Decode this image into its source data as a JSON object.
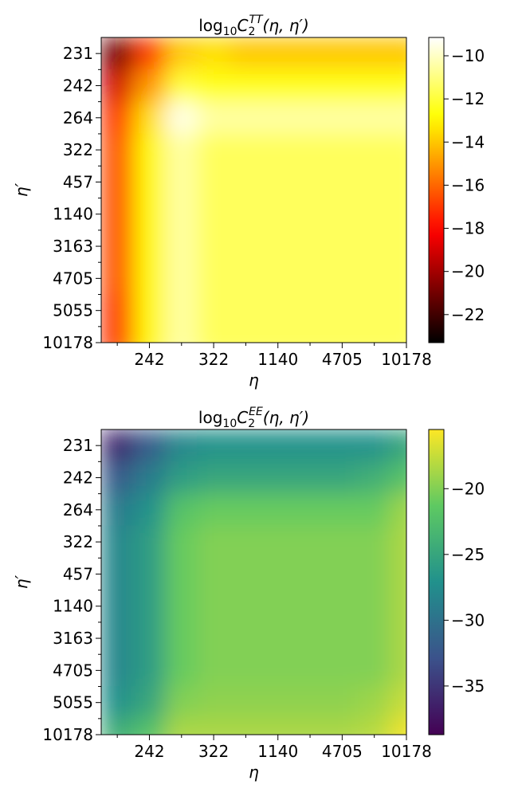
{
  "chart_data": [
    {
      "type": "heatmap",
      "title": [
        "log",
        "10",
        "C",
        "2",
        "TT",
        "(η, η′)"
      ],
      "xlabel": "η",
      "ylabel": "η′",
      "x": [
        null,
        242,
        null,
        322,
        null,
        1140,
        null,
        4705,
        null,
        10178
      ],
      "y": [
        231,
        242,
        264,
        322,
        457,
        1140,
        3163,
        4705,
        5055,
        10178
      ],
      "values": [
        [
          -21,
          -17,
          -14,
          -13.5,
          -14,
          -14,
          -14,
          -14,
          -14,
          -14
        ],
        [
          -19,
          -15,
          -12,
          -12.5,
          -12.5,
          -12.5,
          -12.5,
          -12.5,
          -12.5,
          -12.5
        ],
        [
          -17,
          -13.5,
          -9.5,
          -10.5,
          -10.5,
          -10.5,
          -10.5,
          -10.5,
          -10.5,
          -10.5
        ],
        [
          -16.5,
          -13,
          -10.5,
          -11.5,
          -11.5,
          -11.5,
          -11.5,
          -11.5,
          -11.5,
          -11.5
        ],
        [
          -16.5,
          -13,
          -10.5,
          -11.5,
          -11.5,
          -11.5,
          -11.5,
          -11.5,
          -11.5,
          -11.5
        ],
        [
          -16.5,
          -13,
          -10.5,
          -11.5,
          -11.5,
          -11.5,
          -11.5,
          -11.5,
          -11.5,
          -11.5
        ],
        [
          -16.5,
          -13,
          -10.5,
          -11.5,
          -11.5,
          -11.5,
          -11.5,
          -11.5,
          -11.5,
          -11.5
        ],
        [
          -16.5,
          -13,
          -10.5,
          -11.5,
          -11.5,
          -11.5,
          -11.5,
          -11.5,
          -11.5,
          -11.5
        ],
        [
          -17,
          -13,
          -10.5,
          -11.5,
          -11.5,
          -11.5,
          -11.5,
          -11.5,
          -11.5,
          -11.5
        ],
        [
          -17,
          -13,
          -10.5,
          -11.5,
          -11.5,
          -11.5,
          -11.5,
          -11.5,
          -11.5,
          -11.5
        ]
      ],
      "colorbar": {
        "cmap": "hot",
        "lim": [
          -23.3,
          -9.15
        ],
        "ticks": [
          {
            "value": -10,
            "label": "−10"
          },
          {
            "value": -12,
            "label": "−12"
          },
          {
            "value": -14,
            "label": "−14"
          },
          {
            "value": -16,
            "label": "−16"
          },
          {
            "value": -18,
            "label": "−18"
          },
          {
            "value": -20,
            "label": "−20"
          },
          {
            "value": -22,
            "label": "−22"
          }
        ]
      }
    },
    {
      "type": "heatmap",
      "title": [
        "log",
        "10",
        "C",
        "2",
        "EE",
        "(η, η′)"
      ],
      "xlabel": "η",
      "ylabel": "η′",
      "x": [
        null,
        242,
        null,
        322,
        null,
        1140,
        null,
        4705,
        null,
        10178
      ],
      "y": [
        231,
        242,
        264,
        322,
        457,
        1140,
        3163,
        4705,
        5055,
        10178
      ],
      "values": [
        [
          -36,
          -32,
          -28,
          -27,
          -27,
          -27,
          -27,
          -27,
          -27,
          -25
        ],
        [
          -32,
          -29,
          -26,
          -25,
          -25,
          -25,
          -25,
          -25,
          -24,
          -22
        ],
        [
          -29,
          -27,
          -22,
          -21,
          -21,
          -21,
          -21,
          -21,
          -21,
          -19
        ],
        [
          -28,
          -26,
          -21,
          -20,
          -20,
          -20,
          -20,
          -20,
          -20,
          -18.5
        ],
        [
          -28,
          -26,
          -21,
          -20,
          -20,
          -20,
          -20,
          -20,
          -20,
          -18.5
        ],
        [
          -28,
          -26,
          -21,
          -20,
          -20,
          -20,
          -20,
          -20,
          -20,
          -18.5
        ],
        [
          -28,
          -26,
          -21,
          -20,
          -20,
          -20,
          -20,
          -20,
          -20,
          -18.5
        ],
        [
          -28,
          -26,
          -21,
          -20,
          -20,
          -20,
          -20,
          -20,
          -20,
          -18.5
        ],
        [
          -27,
          -25,
          -20,
          -19.5,
          -19.5,
          -19.5,
          -19.5,
          -19.5,
          -19,
          -17.5
        ],
        [
          -24,
          -22,
          -18.5,
          -18.5,
          -18.5,
          -18.5,
          -18.5,
          -18.5,
          -18,
          -16
        ]
      ],
      "colorbar": {
        "cmap": "viridis",
        "lim": [
          -38.7,
          -15.5
        ],
        "ticks": [
          {
            "value": -20,
            "label": "−20"
          },
          {
            "value": -25,
            "label": "−25"
          },
          {
            "value": -30,
            "label": "−30"
          },
          {
            "value": -35,
            "label": "−35"
          }
        ]
      }
    }
  ]
}
